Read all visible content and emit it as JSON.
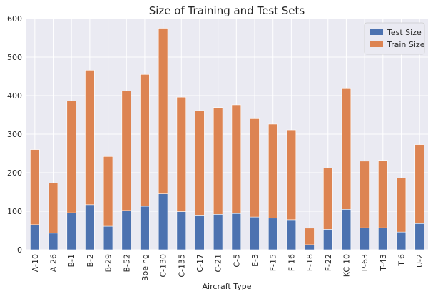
{
  "chart_data": {
    "type": "bar",
    "stacked": true,
    "title": "Size of Training and Test Sets",
    "xlabel": "Aircraft Type",
    "ylabel": "",
    "ylim": [
      0,
      600
    ],
    "yticks": [
      0,
      100,
      200,
      300,
      400,
      500,
      600
    ],
    "grid": true,
    "legend_position": "top-right",
    "categories": [
      "A-10",
      "A-26",
      "B-1",
      "B-2",
      "B-29",
      "B-52",
      "Boeing",
      "C-130",
      "C-135",
      "C-17",
      "C-21",
      "C-5",
      "E-3",
      "F-15",
      "F-16",
      "F-18",
      "F-22",
      "KC-10",
      "P-63",
      "T-43",
      "T-6",
      "U-2"
    ],
    "series": [
      {
        "name": "Test Size",
        "color": "#4c72b0",
        "values": [
          65,
          43,
          96,
          117,
          61,
          102,
          113,
          145,
          99,
          90,
          92,
          94,
          85,
          82,
          78,
          13,
          53,
          105,
          57,
          57,
          46,
          68
        ]
      },
      {
        "name": "Train Size",
        "color": "#dd8452",
        "values": [
          195,
          130,
          290,
          349,
          181,
          310,
          342,
          430,
          297,
          271,
          277,
          282,
          255,
          244,
          233,
          43,
          159,
          313,
          173,
          175,
          140,
          205
        ]
      }
    ]
  }
}
